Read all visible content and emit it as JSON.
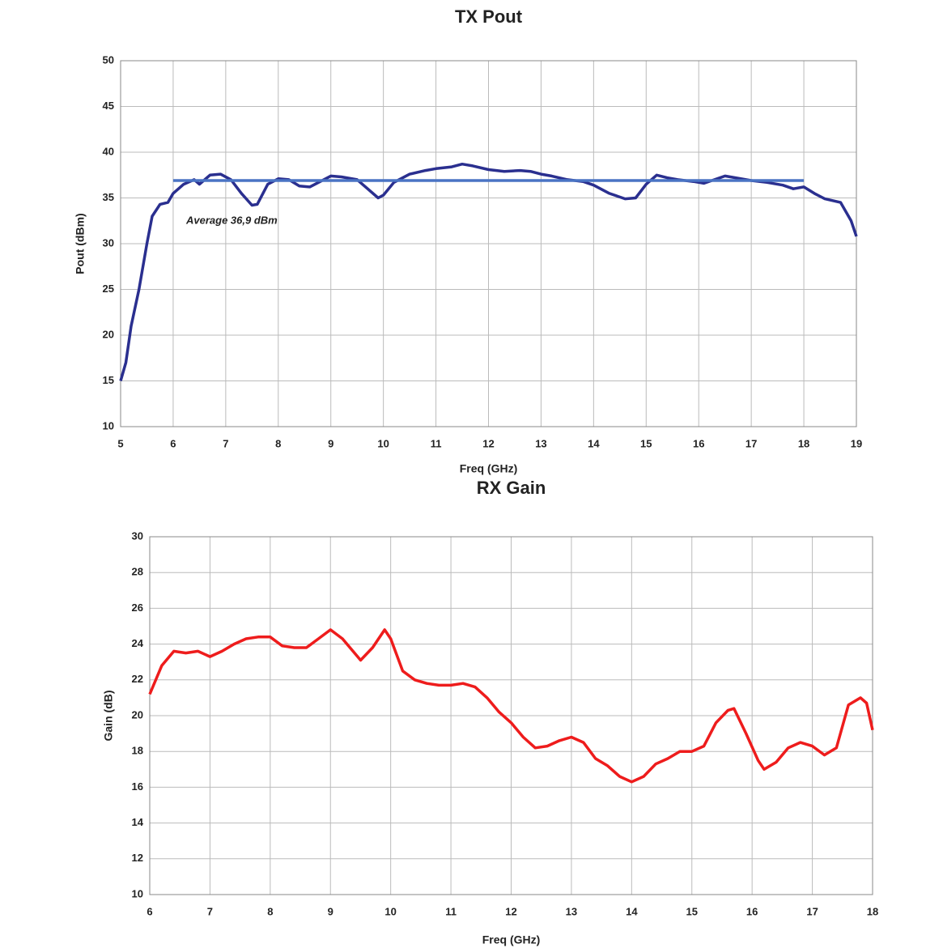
{
  "chart_data": [
    {
      "type": "line",
      "title": "TX Pout",
      "x_label": "Freq (GHz)",
      "y_label": "Pout (dBm)",
      "annotation": "Average 36,9 dBm",
      "grid": true,
      "xlim": [
        5,
        19
      ],
      "xticks": [
        5,
        6,
        7,
        8,
        9,
        10,
        11,
        12,
        13,
        14,
        15,
        16,
        17,
        18,
        19
      ],
      "ylim": [
        10,
        50
      ],
      "yticks": [
        10,
        15,
        20,
        25,
        30,
        35,
        40,
        45,
        50
      ],
      "series": [
        {
          "color": "#2a2f8f",
          "x": [
            5,
            5.1,
            5.2,
            5.35,
            5.5,
            5.6,
            5.75,
            5.9,
            6,
            6.2,
            6.4,
            6.5,
            6.7,
            6.9,
            7.1,
            7.3,
            7.5,
            7.6,
            7.8,
            8,
            8.2,
            8.4,
            8.6,
            8.8,
            9,
            9.2,
            9.5,
            9.7,
            9.9,
            10,
            10.2,
            10.5,
            10.8,
            11,
            11.3,
            11.5,
            11.7,
            12,
            12.3,
            12.6,
            12.8,
            13,
            13.2,
            13.5,
            13.8,
            14,
            14.3,
            14.6,
            14.8,
            15,
            15.2,
            15.4,
            15.6,
            15.9,
            16.1,
            16.3,
            16.5,
            16.7,
            17,
            17.3,
            17.6,
            17.8,
            18,
            18.2,
            18.4,
            18.7,
            18.9,
            19
          ],
          "values": [
            15,
            17,
            21,
            25,
            30,
            33,
            34.3,
            34.5,
            35.5,
            36.5,
            37,
            36.5,
            37.5,
            37.6,
            37,
            35.5,
            34.2,
            34.3,
            36.5,
            37.1,
            37,
            36.3,
            36.2,
            36.8,
            37.4,
            37.3,
            37,
            36,
            35,
            35.3,
            36.7,
            37.6,
            38,
            38.2,
            38.4,
            38.7,
            38.5,
            38.1,
            37.9,
            38,
            37.9,
            37.6,
            37.4,
            37,
            36.8,
            36.4,
            35.5,
            34.9,
            35,
            36.5,
            37.5,
            37.2,
            37,
            36.8,
            36.6,
            37,
            37.4,
            37.2,
            36.9,
            36.7,
            36.4,
            36,
            36.2,
            35.5,
            34.9,
            34.5,
            32.5,
            30.8
          ]
        },
        {
          "color": "#4a74c4",
          "x": [
            6,
            18
          ],
          "values": [
            36.9,
            36.9
          ]
        }
      ]
    },
    {
      "type": "line",
      "title": "RX Gain",
      "x_label": "Freq (GHz)",
      "y_label": "Gain (dB)",
      "grid": true,
      "xlim": [
        6,
        18
      ],
      "xticks": [
        6,
        7,
        8,
        9,
        10,
        11,
        12,
        13,
        14,
        15,
        16,
        17,
        18
      ],
      "ylim": [
        10,
        30
      ],
      "yticks": [
        10,
        12,
        14,
        16,
        18,
        20,
        22,
        24,
        26,
        28,
        30
      ],
      "series": [
        {
          "color": "#ee1c1c",
          "x": [
            6,
            6.2,
            6.4,
            6.6,
            6.8,
            7,
            7.2,
            7.4,
            7.6,
            7.8,
            8,
            8.2,
            8.4,
            8.6,
            8.8,
            9,
            9.2,
            9.4,
            9.5,
            9.7,
            9.9,
            10,
            10.2,
            10.4,
            10.6,
            10.8,
            11,
            11.2,
            11.4,
            11.6,
            11.8,
            12,
            12.2,
            12.4,
            12.6,
            12.8,
            13,
            13.2,
            13.4,
            13.6,
            13.8,
            14,
            14.2,
            14.4,
            14.6,
            14.8,
            15,
            15.2,
            15.4,
            15.6,
            15.7,
            15.9,
            16.1,
            16.2,
            16.4,
            16.6,
            16.8,
            17,
            17.2,
            17.4,
            17.6,
            17.8,
            17.9,
            18
          ],
          "values": [
            21.2,
            22.8,
            23.6,
            23.5,
            23.6,
            23.3,
            23.6,
            24,
            24.3,
            24.4,
            24.4,
            23.9,
            23.8,
            23.8,
            24.3,
            24.8,
            24.3,
            23.5,
            23.1,
            23.8,
            24.8,
            24.3,
            22.5,
            22,
            21.8,
            21.7,
            21.7,
            21.8,
            21.6,
            21,
            20.2,
            19.6,
            18.8,
            18.2,
            18.3,
            18.6,
            18.8,
            18.5,
            17.6,
            17.2,
            16.6,
            16.3,
            16.6,
            17.3,
            17.6,
            18,
            18,
            18.3,
            19.6,
            20.3,
            20.4,
            19,
            17.5,
            17,
            17.4,
            18.2,
            18.5,
            18.3,
            17.8,
            18.2,
            20.6,
            21,
            20.7,
            19.2
          ]
        }
      ]
    }
  ]
}
